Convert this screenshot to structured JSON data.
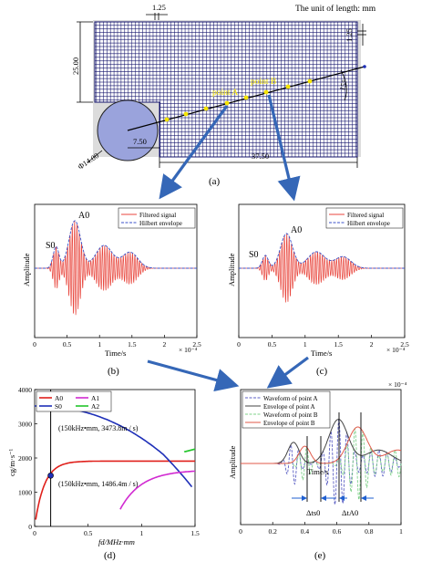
{
  "top": {
    "unit": "The unit of length: mm",
    "dims": {
      "d125_top": "1.25",
      "d125_right": "1.25",
      "d2500": "25.00",
      "angle": "15°",
      "diam": "Φ14.00",
      "d750": "7.50",
      "d3750": "37.50"
    },
    "point_a": "point A",
    "point_b": "point B",
    "caption": "(a)"
  },
  "panel_b": {
    "caption": "(b)",
    "legend": [
      "Filtered signal",
      "Hilbert envelope"
    ],
    "ylabel": "Amplitude",
    "xlabel": "Time/s",
    "xticks": [
      "0",
      "0.5",
      "1",
      "1.5",
      "2",
      "2.5"
    ],
    "exp": "× 10⁻⁴",
    "s0": "S0",
    "a0": "A0"
  },
  "panel_c": {
    "caption": "(c)",
    "legend": [
      "Filtered signal",
      "Hilbert envelope"
    ],
    "ylabel": "Amplitude",
    "xlabel": "Time/s",
    "xticks": [
      "0",
      "0.5",
      "1",
      "1.5",
      "2",
      "2.5"
    ],
    "exp": "× 10⁻⁴",
    "s0": "S0",
    "a0": "A0"
  },
  "panel_d": {
    "caption": "(d)",
    "legend": [
      "A0",
      "S0",
      "A1",
      "A2"
    ],
    "ylabel": "cg/m·s⁻¹",
    "xlabel": "fd/MHz·mm",
    "xticks": [
      "0",
      "0.5",
      "1",
      "1.5"
    ],
    "yticks": [
      "0",
      "1000",
      "2000",
      "3000",
      "4000"
    ],
    "ann1": "(150kHz•mm, 3473.8m / s)",
    "ann2": "(150kHz•mm, 1486.4m / s)"
  },
  "panel_e": {
    "caption": "(e)",
    "legend": [
      "Waveform of point A",
      "Envelope of point A",
      "Waveform of point B",
      "Envelope of point B"
    ],
    "ylabel": "Amplitude",
    "xlabel": "Time/s",
    "xticks": [
      "0",
      "0.2",
      "0.4",
      "0.6",
      "0.8",
      "1"
    ],
    "exp": "× 10⁻⁴",
    "dts0": "Δts0",
    "dta0": "ΔtA0"
  },
  "colors": {
    "grid": "#10106a",
    "circle": "#9aa3dc",
    "arrow": "#3567b7",
    "filtered": "#e8453c",
    "envelope": "#3b52c8",
    "a0": "#e0201b",
    "s0": "#1e2fb8",
    "a1": "#d12ad1",
    "a2": "#22c52a",
    "waveA": "#5b5fc4",
    "envA": "#444444",
    "waveB": "#7fd08a",
    "envB": "#e05a4a"
  }
}
